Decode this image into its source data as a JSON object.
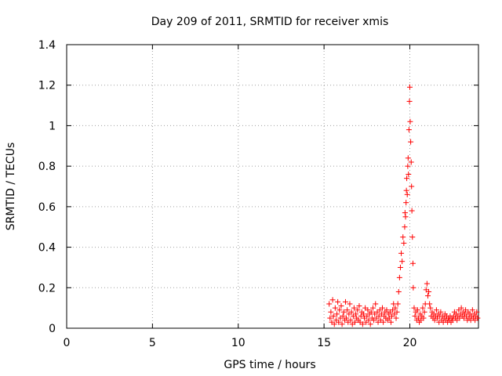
{
  "chart_data": {
    "type": "scatter",
    "title": "Day 209 of 2011, SRMTID for receiver xmis",
    "xlabel": "GPS time / hours",
    "ylabel": "SRMTID / TECUs",
    "xlim": [
      0,
      24
    ],
    "ylim": [
      0,
      1.4
    ],
    "xticks": [
      "0",
      "5",
      "10",
      "15",
      "20"
    ],
    "yticks": [
      "0",
      "0.2",
      "0.4",
      "0.6",
      "0.8",
      "1",
      "1.2",
      "1.4"
    ],
    "grid": true,
    "marker": "plus",
    "series": [
      {
        "color": "#ff0000",
        "points": [
          [
            15.3,
            0.12
          ],
          [
            15.35,
            0.05
          ],
          [
            15.4,
            0.08
          ],
          [
            15.45,
            0.03
          ],
          [
            15.5,
            0.14
          ],
          [
            15.55,
            0.06
          ],
          [
            15.6,
            0.02
          ],
          [
            15.65,
            0.1
          ],
          [
            15.7,
            0.04
          ],
          [
            15.75,
            0.07
          ],
          [
            15.8,
            0.13
          ],
          [
            15.85,
            0.03
          ],
          [
            15.9,
            0.09
          ],
          [
            15.95,
            0.05
          ],
          [
            16.0,
            0.11
          ],
          [
            16.05,
            0.02
          ],
          [
            16.1,
            0.06
          ],
          [
            16.15,
            0.08
          ],
          [
            16.2,
            0.04
          ],
          [
            16.25,
            0.13
          ],
          [
            16.3,
            0.05
          ],
          [
            16.35,
            0.09
          ],
          [
            16.4,
            0.03
          ],
          [
            16.45,
            0.07
          ],
          [
            16.5,
            0.12
          ],
          [
            16.55,
            0.04
          ],
          [
            16.6,
            0.08
          ],
          [
            16.65,
            0.02
          ],
          [
            16.7,
            0.06
          ],
          [
            16.75,
            0.1
          ],
          [
            16.8,
            0.03
          ],
          [
            16.85,
            0.07
          ],
          [
            16.9,
            0.05
          ],
          [
            16.95,
            0.09
          ],
          [
            17.0,
            0.04
          ],
          [
            17.05,
            0.11
          ],
          [
            17.1,
            0.03
          ],
          [
            17.15,
            0.06
          ],
          [
            17.2,
            0.08
          ],
          [
            17.25,
            0.02
          ],
          [
            17.3,
            0.07
          ],
          [
            17.35,
            0.05
          ],
          [
            17.4,
            0.1
          ],
          [
            17.45,
            0.03
          ],
          [
            17.5,
            0.06
          ],
          [
            17.55,
            0.09
          ],
          [
            17.6,
            0.04
          ],
          [
            17.65,
            0.07
          ],
          [
            17.7,
            0.02
          ],
          [
            17.75,
            0.08
          ],
          [
            17.8,
            0.05
          ],
          [
            17.85,
            0.1
          ],
          [
            17.9,
            0.04
          ],
          [
            17.95,
            0.07
          ],
          [
            18.0,
            0.12
          ],
          [
            18.05,
            0.05
          ],
          [
            18.1,
            0.08
          ],
          [
            18.15,
            0.03
          ],
          [
            18.2,
            0.06
          ],
          [
            18.25,
            0.09
          ],
          [
            18.3,
            0.04
          ],
          [
            18.35,
            0.07
          ],
          [
            18.4,
            0.1
          ],
          [
            18.45,
            0.03
          ],
          [
            18.5,
            0.06
          ],
          [
            18.55,
            0.08
          ],
          [
            18.6,
            0.05
          ],
          [
            18.65,
            0.09
          ],
          [
            18.7,
            0.04
          ],
          [
            18.75,
            0.07
          ],
          [
            18.8,
            0.05
          ],
          [
            18.85,
            0.08
          ],
          [
            18.9,
            0.03
          ],
          [
            18.95,
            0.06
          ],
          [
            19.0,
            0.09
          ],
          [
            19.05,
            0.12
          ],
          [
            19.1,
            0.07
          ],
          [
            19.15,
            0.1
          ],
          [
            19.2,
            0.05
          ],
          [
            19.25,
            0.08
          ],
          [
            19.3,
            0.12
          ],
          [
            19.35,
            0.18
          ],
          [
            19.4,
            0.25
          ],
          [
            19.45,
            0.3
          ],
          [
            19.5,
            0.37
          ],
          [
            19.55,
            0.33
          ],
          [
            19.6,
            0.45
          ],
          [
            19.65,
            0.42
          ],
          [
            19.7,
            0.5
          ],
          [
            19.72,
            0.57
          ],
          [
            19.75,
            0.55
          ],
          [
            19.78,
            0.62
          ],
          [
            19.8,
            0.68
          ],
          [
            19.82,
            0.74
          ],
          [
            19.85,
            0.66
          ],
          [
            19.88,
            0.8
          ],
          [
            19.9,
            0.84
          ],
          [
            19.92,
            0.76
          ],
          [
            19.95,
            0.98
          ],
          [
            19.98,
            1.12
          ],
          [
            20.0,
            1.19
          ],
          [
            20.02,
            1.02
          ],
          [
            20.05,
            0.92
          ],
          [
            20.08,
            0.82
          ],
          [
            20.1,
            0.7
          ],
          [
            20.12,
            0.58
          ],
          [
            20.15,
            0.45
          ],
          [
            20.18,
            0.32
          ],
          [
            20.2,
            0.2
          ],
          [
            20.25,
            0.1
          ],
          [
            20.3,
            0.06
          ],
          [
            20.35,
            0.08
          ],
          [
            20.4,
            0.04
          ],
          [
            20.45,
            0.09
          ],
          [
            20.5,
            0.05
          ],
          [
            20.55,
            0.03
          ],
          [
            20.6,
            0.07
          ],
          [
            20.65,
            0.04
          ],
          [
            20.7,
            0.06
          ],
          [
            20.75,
            0.1
          ],
          [
            20.8,
            0.05
          ],
          [
            20.85,
            0.08
          ],
          [
            20.9,
            0.12
          ],
          [
            20.95,
            0.19
          ],
          [
            21.0,
            0.22
          ],
          [
            21.05,
            0.16
          ],
          [
            21.1,
            0.18
          ],
          [
            21.15,
            0.12
          ],
          [
            21.2,
            0.1
          ],
          [
            21.25,
            0.06
          ],
          [
            21.3,
            0.08
          ],
          [
            21.35,
            0.05
          ],
          [
            21.4,
            0.07
          ],
          [
            21.45,
            0.04
          ],
          [
            21.5,
            0.06
          ],
          [
            21.55,
            0.09
          ],
          [
            21.6,
            0.05
          ],
          [
            21.65,
            0.07
          ],
          [
            21.7,
            0.03
          ],
          [
            21.75,
            0.06
          ],
          [
            21.8,
            0.08
          ],
          [
            21.85,
            0.04
          ],
          [
            21.9,
            0.06
          ],
          [
            21.95,
            0.03
          ],
          [
            22.0,
            0.05
          ],
          [
            22.05,
            0.07
          ],
          [
            22.1,
            0.04
          ],
          [
            22.15,
            0.06
          ],
          [
            22.2,
            0.03
          ],
          [
            22.25,
            0.05
          ],
          [
            22.3,
            0.04
          ],
          [
            22.35,
            0.06
          ],
          [
            22.4,
            0.03
          ],
          [
            22.45,
            0.05
          ],
          [
            22.5,
            0.04
          ],
          [
            22.55,
            0.06
          ],
          [
            22.6,
            0.08
          ],
          [
            22.65,
            0.05
          ],
          [
            22.7,
            0.07
          ],
          [
            22.75,
            0.04
          ],
          [
            22.8,
            0.06
          ],
          [
            22.85,
            0.09
          ],
          [
            22.9,
            0.05
          ],
          [
            22.95,
            0.07
          ],
          [
            23.0,
            0.1
          ],
          [
            23.05,
            0.06
          ],
          [
            23.1,
            0.08
          ],
          [
            23.15,
            0.05
          ],
          [
            23.2,
            0.07
          ],
          [
            23.25,
            0.09
          ],
          [
            23.3,
            0.06
          ],
          [
            23.35,
            0.04
          ],
          [
            23.4,
            0.08
          ],
          [
            23.45,
            0.05
          ],
          [
            23.5,
            0.07
          ],
          [
            23.55,
            0.04
          ],
          [
            23.6,
            0.06
          ],
          [
            23.65,
            0.09
          ],
          [
            23.7,
            0.05
          ],
          [
            23.75,
            0.07
          ],
          [
            23.8,
            0.04
          ],
          [
            23.85,
            0.06
          ],
          [
            23.9,
            0.08
          ],
          [
            23.95,
            0.05
          ]
        ]
      }
    ]
  }
}
